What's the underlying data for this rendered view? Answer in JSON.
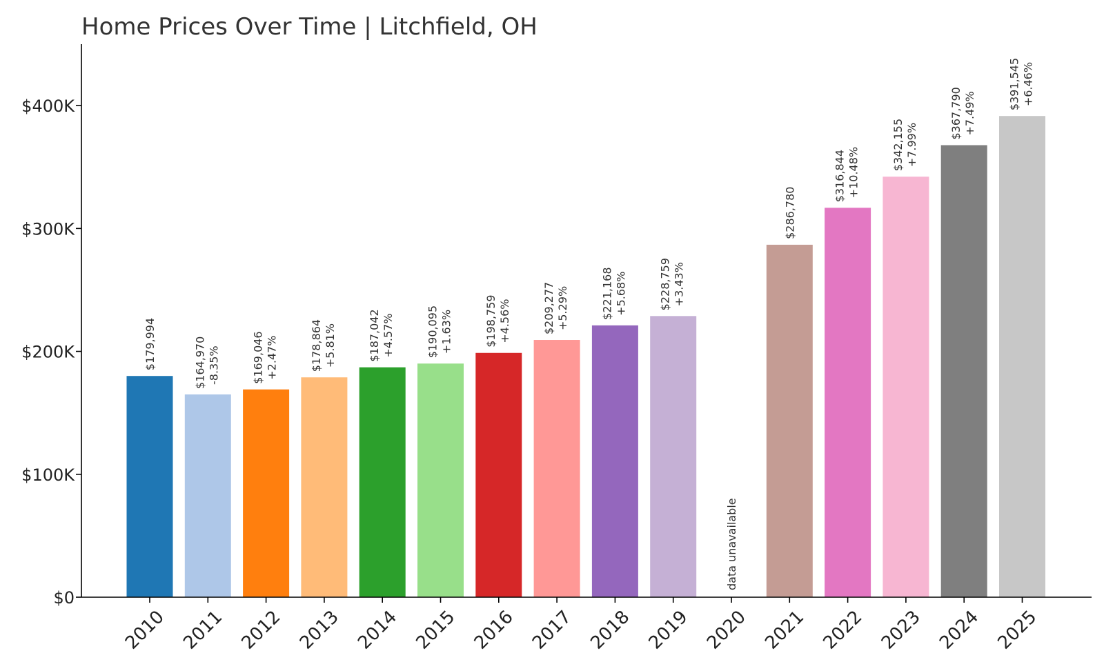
{
  "chart_data": {
    "type": "bar",
    "title": "Home Prices Over Time | Litchfield, OH",
    "xlabel": "",
    "ylabel": "",
    "ylim": [
      0,
      450000
    ],
    "yticks": [
      {
        "value": 0,
        "label": "$0"
      },
      {
        "value": 100000,
        "label": "$100K"
      },
      {
        "value": 200000,
        "label": "$200K"
      },
      {
        "value": 300000,
        "label": "$300K"
      },
      {
        "value": 400000,
        "label": "$400K"
      }
    ],
    "grid": false,
    "legend": "none",
    "categories": [
      "2010",
      "2011",
      "2012",
      "2013",
      "2014",
      "2015",
      "2016",
      "2017",
      "2018",
      "2019",
      "2020",
      "2021",
      "2022",
      "2023",
      "2024",
      "2025"
    ],
    "values": [
      179994,
      164970,
      169046,
      178864,
      187042,
      190095,
      198759,
      209277,
      221168,
      228759,
      null,
      286780,
      316844,
      342155,
      367790,
      391545
    ],
    "value_labels": [
      "$179,994",
      "$164,970",
      "$169,046",
      "$178,864",
      "$187,042",
      "$190,095",
      "$198,759",
      "$209,277",
      "$221,168",
      "$228,759",
      "",
      "$286,780",
      "$316,844",
      "$342,155",
      "$367,790",
      "$391,545"
    ],
    "change_labels": [
      "",
      "-8.35%",
      "+2.47%",
      "+5.81%",
      "+4.57%",
      "+1.63%",
      "+4.56%",
      "+5.29%",
      "+5.68%",
      "+3.43%",
      "",
      "",
      "+10.48%",
      "+7.99%",
      "+7.49%",
      "+6.46%"
    ],
    "missing_label": "data unavailable",
    "colors": [
      "#1f77b4",
      "#aec7e8",
      "#ff7f0e",
      "#ffbb78",
      "#2ca02c",
      "#98df8a",
      "#d62728",
      "#ff9896",
      "#9467bd",
      "#c5b0d5",
      "#8c564b",
      "#c49c94",
      "#e377c2",
      "#f7b6d2",
      "#7f7f7f",
      "#c7c7c7"
    ]
  }
}
